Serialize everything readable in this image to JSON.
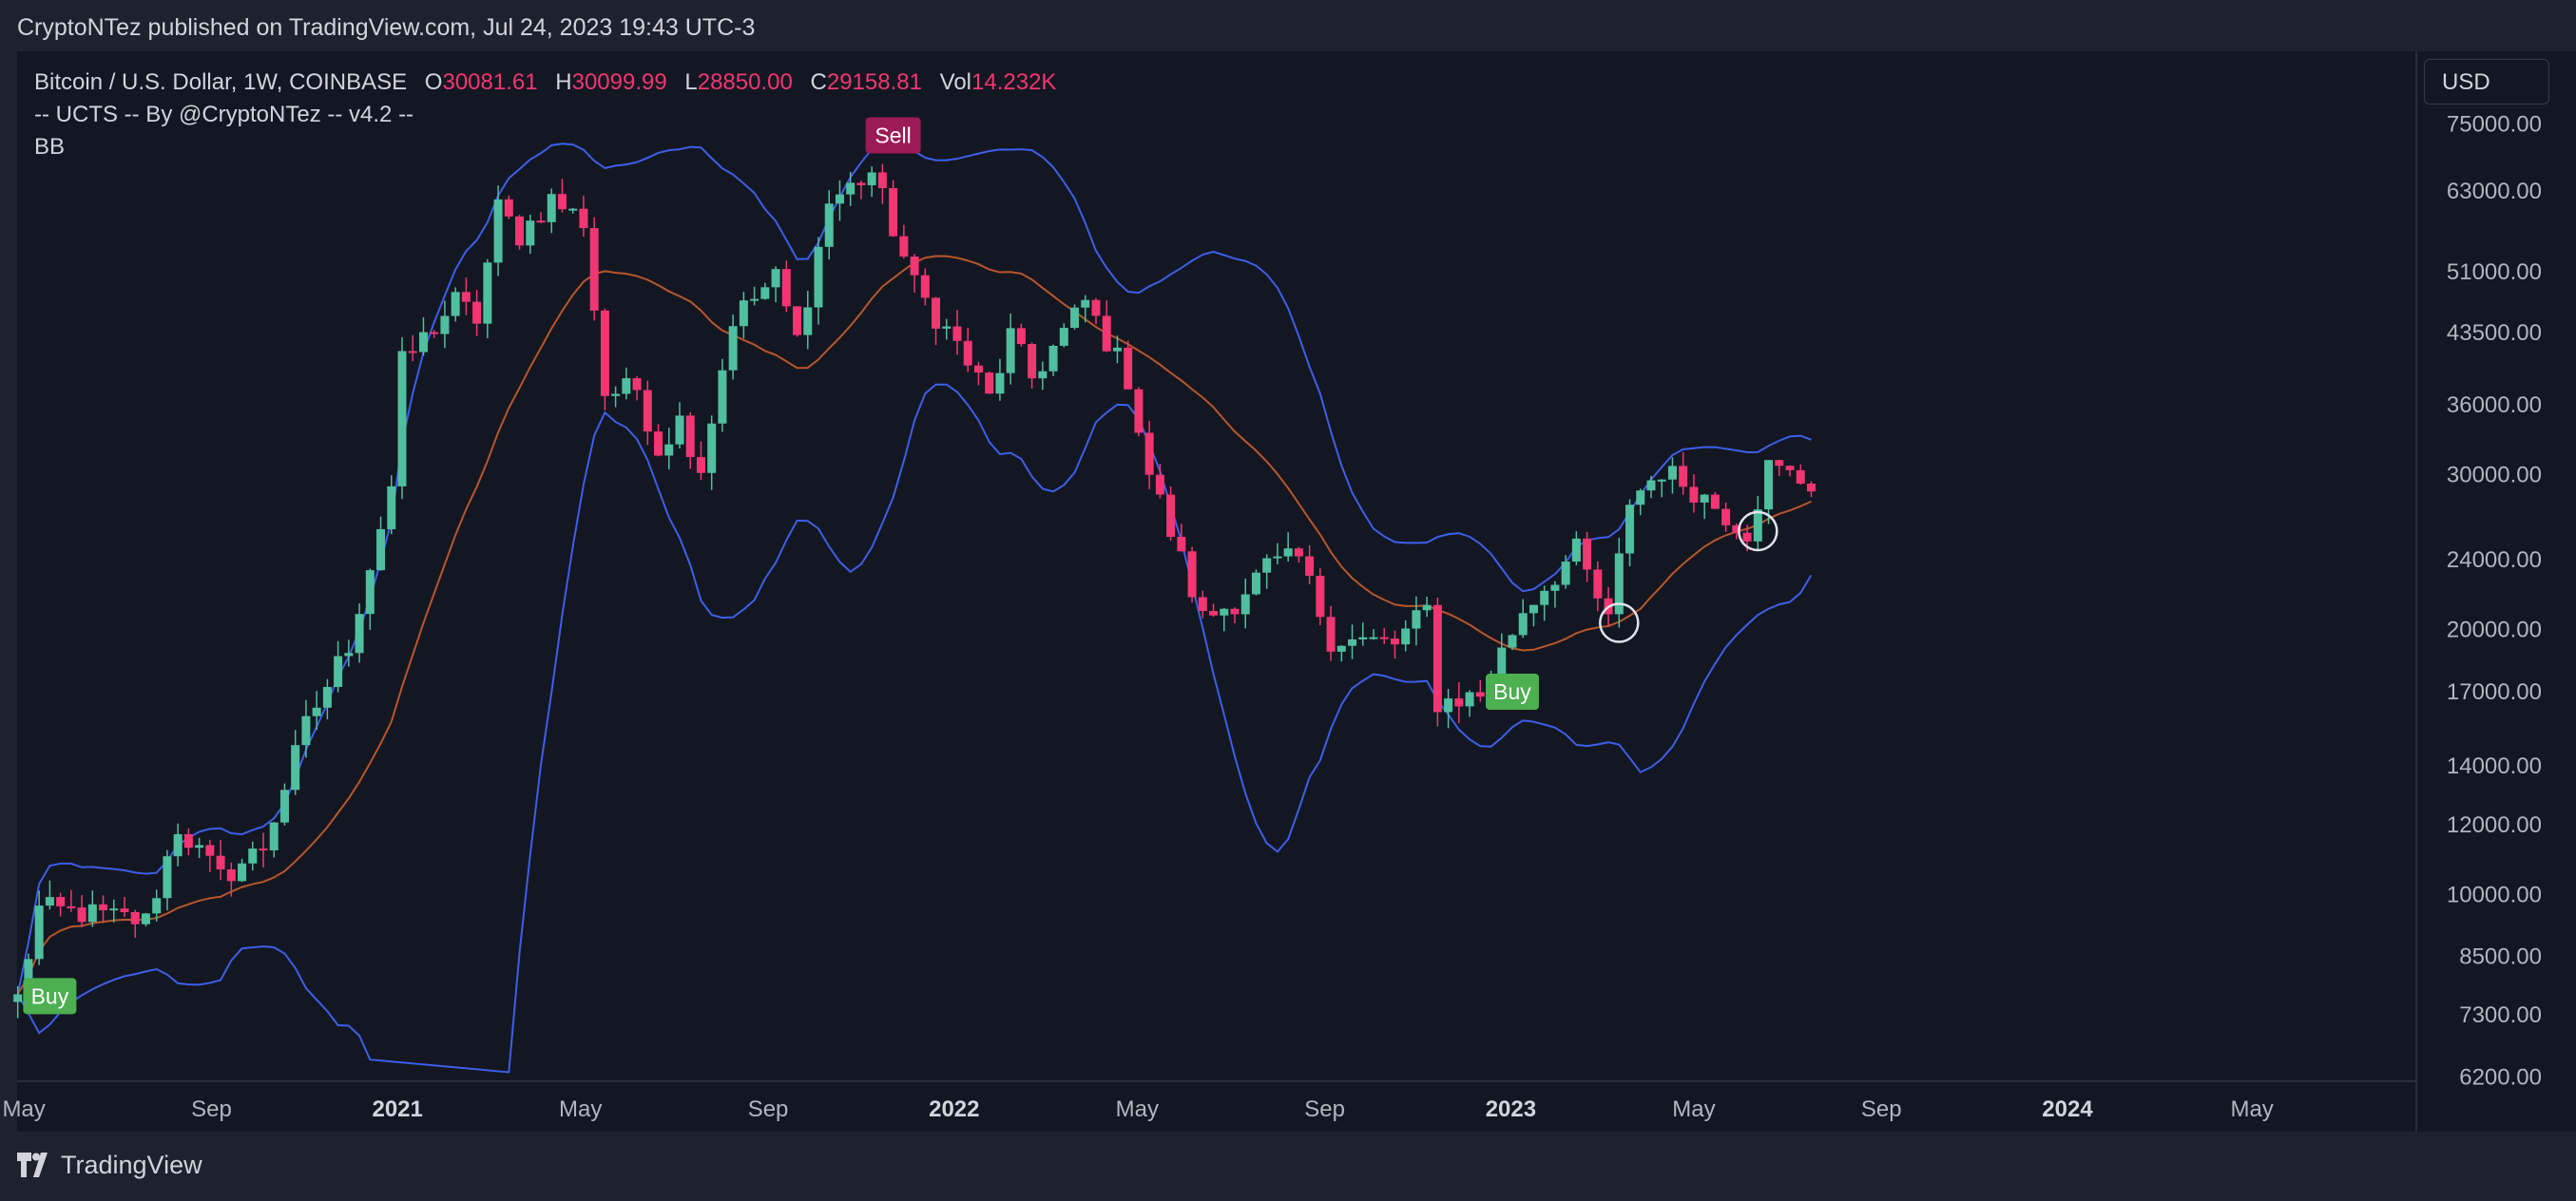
{
  "header": {
    "published": "CryptoNTez published on TradingView.com, Jul 24, 2023 19:43 UTC-3"
  },
  "legend": {
    "symbol": "Bitcoin / U.S. Dollar, 1W, COINBASE",
    "o_label": "O",
    "o_value": "30081.61",
    "h_label": "H",
    "h_value": "30099.99",
    "l_label": "L",
    "l_value": "28850.00",
    "c_label": "C",
    "c_value": "29158.81",
    "vol_label": "Vol",
    "vol_value": "14.232K",
    "indicator1": "-- UCTS -- By @CryptoNTez -- v4.2 --",
    "indicator2": "BB"
  },
  "currency": "USD",
  "footer": {
    "brand": "TradingView"
  },
  "colors": {
    "up": "#4fbfa0",
    "down": "#f23672",
    "bb_band": "#3d5ee8",
    "bb_basis": "#b8562a",
    "buy": "#4caf50",
    "sell": "#9c1a55",
    "background": "#131722",
    "grid": "#2a2e39"
  },
  "chart_data": {
    "type": "candlestick",
    "interval": "1W",
    "price_scale": "log",
    "y_ticks": [
      "75000.00",
      "63000.00",
      "51000.00",
      "43500.00",
      "36000.00",
      "30000.00",
      "24000.00",
      "20000.00",
      "17000.00",
      "14000.00",
      "12000.00",
      "10000.00",
      "8500.00",
      "7300.00",
      "6200.00"
    ],
    "x_ticks": [
      "May",
      "Sep",
      "2021",
      "May",
      "Sep",
      "2022",
      "May",
      "Sep",
      "2023",
      "May",
      "Sep",
      "2024",
      "May"
    ],
    "x_ticks_bold": [
      false,
      false,
      true,
      false,
      false,
      true,
      false,
      false,
      true,
      false,
      false,
      true,
      false
    ],
    "signals": [
      {
        "label": "Buy",
        "date": "2020-05-18",
        "price": 8300
      },
      {
        "label": "Sell",
        "date": "2021-11-22",
        "price": 64000
      },
      {
        "label": "Buy",
        "date": "2023-01-02",
        "price": 18400
      }
    ],
    "circles": [
      {
        "date": "2023-03-13",
        "price": 20300
      },
      {
        "date": "2023-06-12",
        "price": 25800
      }
    ],
    "price_anchors": [
      [
        "2020-04-27",
        7600
      ],
      [
        "2020-05-11",
        9600
      ],
      [
        "2020-06-08",
        9500
      ],
      [
        "2020-07-20",
        9300
      ],
      [
        "2020-08-10",
        11900
      ],
      [
        "2020-09-07",
        10400
      ],
      [
        "2020-10-05",
        11300
      ],
      [
        "2020-11-02",
        15500
      ],
      [
        "2020-11-30",
        19200
      ],
      [
        "2020-12-28",
        29000
      ],
      [
        "2021-01-04",
        40000
      ],
      [
        "2021-02-08",
        47000
      ],
      [
        "2021-02-22",
        45000
      ],
      [
        "2021-03-08",
        60000
      ],
      [
        "2021-03-22",
        56000
      ],
      [
        "2021-04-12",
        61500
      ],
      [
        "2021-05-03",
        58000
      ],
      [
        "2021-05-17",
        37000
      ],
      [
        "2021-06-07",
        37500
      ],
      [
        "2021-06-21",
        32000
      ],
      [
        "2021-07-05",
        34500
      ],
      [
        "2021-07-19",
        30500
      ],
      [
        "2021-08-09",
        45000
      ],
      [
        "2021-09-06",
        50000
      ],
      [
        "2021-09-20",
        42500
      ],
      [
        "2021-10-11",
        61000
      ],
      [
        "2021-11-08",
        66000
      ],
      [
        "2021-11-22",
        57000
      ],
      [
        "2021-12-06",
        49000
      ],
      [
        "2022-01-03",
        42000
      ],
      [
        "2022-01-24",
        36500
      ],
      [
        "2022-02-07",
        43000
      ],
      [
        "2022-02-21",
        38500
      ],
      [
        "2022-03-28",
        47000
      ],
      [
        "2022-04-25",
        38500
      ],
      [
        "2022-05-09",
        30000
      ],
      [
        "2022-06-13",
        20500
      ],
      [
        "2022-07-04",
        21500
      ],
      [
        "2022-07-25",
        23500
      ],
      [
        "2022-08-15",
        24000
      ],
      [
        "2022-09-05",
        19500
      ],
      [
        "2022-10-17",
        19200
      ],
      [
        "2022-11-07",
        21000
      ],
      [
        "2022-11-14",
        16500
      ],
      [
        "2022-12-12",
        16800
      ],
      [
        "2023-01-09",
        21000
      ],
      [
        "2023-02-13",
        24500
      ],
      [
        "2023-03-06",
        20300
      ],
      [
        "2023-03-20",
        28000
      ],
      [
        "2023-04-10",
        30300
      ],
      [
        "2023-05-01",
        28800
      ],
      [
        "2023-06-05",
        25800
      ],
      [
        "2023-06-19",
        30500
      ],
      [
        "2023-07-17",
        29200
      ]
    ]
  }
}
